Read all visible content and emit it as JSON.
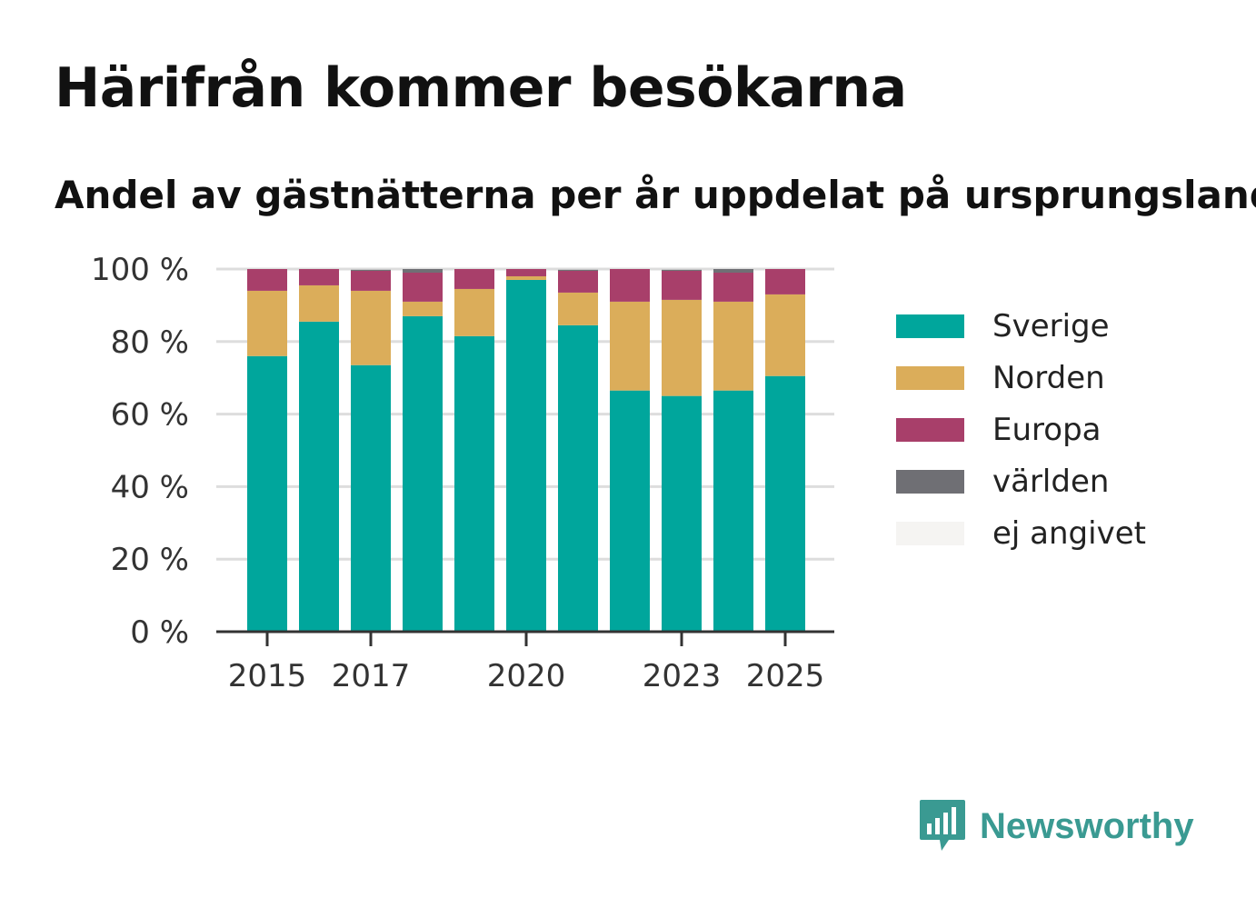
{
  "title": "Härifrån kommer besökarna",
  "subtitle": "Andel av gästnätterna per år uppdelat på ursprungsland",
  "brand": {
    "name": "Newsworthy",
    "icon": "bar-chart-speech-bubble-logo",
    "color": "#3a9a92"
  },
  "chart_data": {
    "type": "bar",
    "stacked": true,
    "x": [
      2015,
      2016,
      2017,
      2018,
      2019,
      2020,
      2021,
      2022,
      2023,
      2024,
      2025
    ],
    "x_tick_labels": [
      "2015",
      "2017",
      "2020",
      "2023",
      "2025"
    ],
    "y_tick_labels": [
      "0 %",
      "20 %",
      "40 %",
      "60 %",
      "80 %",
      "100 %"
    ],
    "ylim": [
      0,
      100
    ],
    "grid": true,
    "legend_position": "right",
    "series": [
      {
        "name": "Sverige",
        "color": "#00a69c",
        "values": [
          76,
          85.5,
          73.5,
          87,
          81.5,
          97,
          84.5,
          66.5,
          65,
          66.5,
          70.5
        ]
      },
      {
        "name": "Norden",
        "color": "#dbad5a",
        "values": [
          18,
          10,
          20.5,
          4,
          13,
          1,
          9,
          24.5,
          26.5,
          24.5,
          22.5
        ]
      },
      {
        "name": "Europa",
        "color": "#a83f6a",
        "values": [
          6,
          4.5,
          5.5,
          8,
          5.5,
          2,
          6,
          9,
          8,
          8,
          7
        ]
      },
      {
        "name": "världen",
        "color": "#6f6f74",
        "values": [
          0,
          0,
          0.3,
          1,
          0,
          0,
          0.3,
          0,
          0.3,
          1,
          0
        ]
      },
      {
        "name": "ej angivet",
        "color": "#f5f4f2",
        "values": [
          0,
          0,
          0,
          0,
          0,
          0,
          0,
          0,
          0,
          0,
          0
        ]
      }
    ]
  }
}
